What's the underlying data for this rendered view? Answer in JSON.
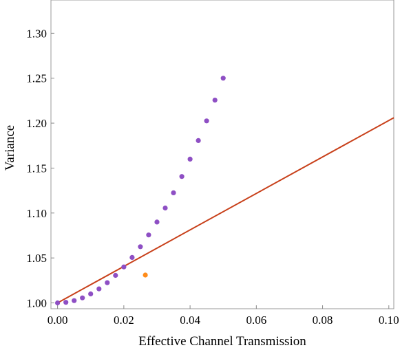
{
  "chart_data": {
    "type": "scatter",
    "title": "",
    "xlabel": "Effective Channel Transmission",
    "ylabel": "Variance",
    "xlim": [
      -0.002,
      0.1015
    ],
    "ylim": [
      0.9935,
      1.337
    ],
    "x_ticks": [
      "0.00",
      "0.02",
      "0.04",
      "0.06",
      "0.08",
      "0.10"
    ],
    "y_ticks": [
      "1.00",
      "1.05",
      "1.10",
      "1.15",
      "1.20",
      "1.25",
      "1.30"
    ],
    "grid": false,
    "legend": "none",
    "series": [
      {
        "kind": "points",
        "color": "#8e4fc4",
        "points": [
          [
            0.0,
            1.0
          ],
          [
            0.0025,
            1.0006
          ],
          [
            0.005,
            1.0025
          ],
          [
            0.0075,
            1.0056
          ],
          [
            0.01,
            1.01
          ],
          [
            0.0125,
            1.0156
          ],
          [
            0.015,
            1.0225
          ],
          [
            0.0175,
            1.0306
          ],
          [
            0.02,
            1.04
          ],
          [
            0.0225,
            1.0506
          ],
          [
            0.025,
            1.0625
          ],
          [
            0.0275,
            1.0756
          ],
          [
            0.03,
            1.09
          ],
          [
            0.0325,
            1.1056
          ],
          [
            0.035,
            1.1225
          ],
          [
            0.0375,
            1.1406
          ],
          [
            0.04,
            1.16
          ],
          [
            0.0425,
            1.1806
          ],
          [
            0.045,
            1.2025
          ],
          [
            0.0475,
            1.2256
          ],
          [
            0.05,
            1.25
          ]
        ]
      },
      {
        "kind": "points",
        "color": "#ff8c1a",
        "points": [
          [
            0.0265,
            1.031
          ]
        ]
      },
      {
        "kind": "line",
        "color": "#c8401a",
        "points": [
          [
            0.0,
            1.0
          ],
          [
            0.1015,
            1.206
          ]
        ]
      }
    ]
  }
}
